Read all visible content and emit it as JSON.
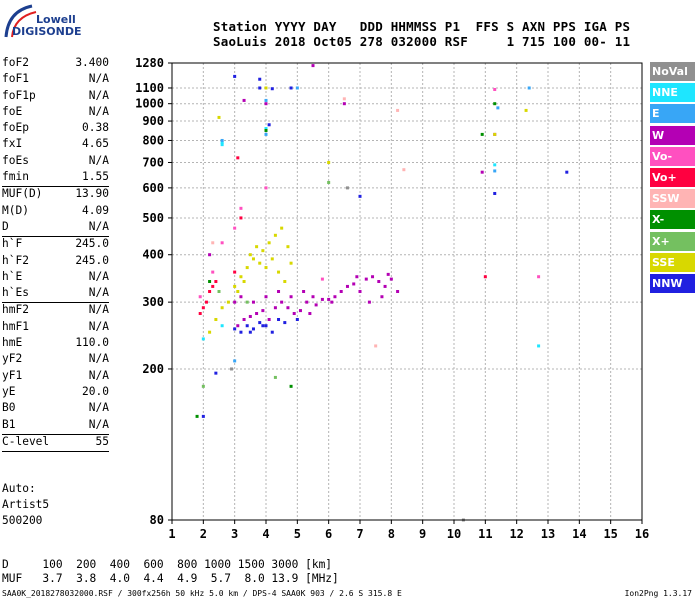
{
  "logo": {
    "top": "Lowell",
    "bottom": "DIGISONDE"
  },
  "header": {
    "line1": "Station YYYY DAY   DDD HHMMSS P1  FFS S AXN PPS IGA PS",
    "line2": "SaoLuis 2018 Oct05 278 032000 RSF     1 715 100 00- 11"
  },
  "params": [
    {
      "name": "foF2",
      "value": "3.400"
    },
    {
      "name": "foF1",
      "value": "N/A"
    },
    {
      "name": "foF1p",
      "value": "N/A"
    },
    {
      "name": "foE",
      "value": "N/A"
    },
    {
      "name": "foEp",
      "value": "0.38"
    },
    {
      "name": "fxI",
      "value": "4.65"
    },
    {
      "name": "foEs",
      "value": "N/A"
    },
    {
      "name": "fmin",
      "value": "1.55",
      "sep": true
    },
    {
      "name": "MUF(D)",
      "value": "13.90"
    },
    {
      "name": "M(D)",
      "value": "4.09"
    },
    {
      "name": "D",
      "value": "N/A",
      "sep": true
    },
    {
      "name": "h`F",
      "value": "245.0"
    },
    {
      "name": "h`F2",
      "value": "245.0"
    },
    {
      "name": "h`E",
      "value": "N/A"
    },
    {
      "name": "h`Es",
      "value": "N/A",
      "sep": true
    },
    {
      "name": "hmF2",
      "value": "N/A"
    },
    {
      "name": "hmF1",
      "value": "N/A"
    },
    {
      "name": "hmE",
      "value": "110.0"
    },
    {
      "name": "yF2",
      "value": "N/A"
    },
    {
      "name": "yF1",
      "value": "N/A"
    },
    {
      "name": "yE",
      "value": "20.0"
    },
    {
      "name": "B0",
      "value": "N/A"
    },
    {
      "name": "B1",
      "value": "N/A",
      "sep": true
    },
    {
      "name": "C-level",
      "value": "55",
      "sep": true
    }
  ],
  "notes": [
    "Auto:",
    "Artist5",
    "500200"
  ],
  "legend": [
    {
      "label": "NoVal",
      "color": "#909090"
    },
    {
      "label": "NNE",
      "color": "#1ee6ff"
    },
    {
      "label": "E",
      "color": "#38a6f6"
    },
    {
      "label": "W",
      "color": "#b400b4"
    },
    {
      "label": "Vo-",
      "color": "#ff50c0"
    },
    {
      "label": "Vo+",
      "color": "#ff0040"
    },
    {
      "label": "SSW",
      "color": "#ffb4b4"
    },
    {
      "label": "X-",
      "color": "#009000"
    },
    {
      "label": "X+",
      "color": "#74c060"
    },
    {
      "label": "SSE",
      "color": "#d8d800"
    },
    {
      "label": "NNW",
      "color": "#2020e0"
    }
  ],
  "table": {
    "line1": "D     100  200  400  600  800 1000 1500 3000 [km]",
    "line2": "MUF   3.7  3.8  4.0  4.4  4.9  5.7  8.0 13.9 [MHz]"
  },
  "footer": "SAA0K_2018278032000.RSF / 300fx256h 50 kHz 5.0 km / DPS-4 SAA0K 903 / 2.6 S 315.8 E",
  "version": "Ion2Png 1.3.17",
  "chart_data": {
    "type": "scatter",
    "title": "",
    "xlabel": "",
    "ylabel": "",
    "x_scale": "linear",
    "y_scale": "log",
    "xlim": [
      1,
      16
    ],
    "ylim": [
      80,
      1280
    ],
    "x_ticks": [
      "1",
      "2",
      "3",
      "4",
      "5",
      "6",
      "7",
      "8",
      "9",
      "10",
      "11",
      "12",
      "13",
      "14",
      "15",
      "16"
    ],
    "y_ticks": [
      "80",
      "200",
      "300",
      "400",
      "500",
      "600",
      "700",
      "800",
      "900",
      "1000",
      "1100",
      "1280"
    ],
    "grid": true,
    "series": [
      {
        "name": "W",
        "color": "#b400b4",
        "points": [
          [
            3.1,
            260
          ],
          [
            3.3,
            270
          ],
          [
            3.5,
            275
          ],
          [
            3.7,
            280
          ],
          [
            3.9,
            285
          ],
          [
            4.1,
            270
          ],
          [
            4.3,
            290
          ],
          [
            4.5,
            300
          ],
          [
            4.7,
            290
          ],
          [
            4.9,
            280
          ],
          [
            5.1,
            285
          ],
          [
            5.3,
            300
          ],
          [
            5.5,
            310
          ],
          [
            5.6,
            295
          ],
          [
            5.8,
            305
          ],
          [
            6.0,
            305
          ],
          [
            6.1,
            300
          ],
          [
            6.4,
            320
          ],
          [
            6.6,
            330
          ],
          [
            6.8,
            335
          ],
          [
            7.0,
            320
          ],
          [
            7.2,
            345
          ],
          [
            7.4,
            350
          ],
          [
            7.6,
            340
          ],
          [
            7.8,
            330
          ],
          [
            7.9,
            355
          ],
          [
            8.0,
            345
          ],
          [
            8.2,
            320
          ],
          [
            6.5,
            1000
          ],
          [
            5.5,
            1260
          ],
          [
            3.0,
            300
          ],
          [
            3.2,
            310
          ],
          [
            3.6,
            300
          ],
          [
            4.0,
            310
          ],
          [
            4.4,
            320
          ],
          [
            4.8,
            310
          ],
          [
            5.2,
            320
          ],
          [
            5.4,
            280
          ],
          [
            6.2,
            310
          ],
          [
            6.9,
            350
          ],
          [
            7.3,
            300
          ],
          [
            7.7,
            310
          ],
          [
            3.3,
            1020
          ],
          [
            2.2,
            400
          ],
          [
            4.0,
            1000
          ],
          [
            11.3,
            830
          ],
          [
            10.9,
            660
          ]
        ]
      },
      {
        "name": "SSE",
        "color": "#d8d800",
        "points": [
          [
            3.0,
            330
          ],
          [
            3.2,
            350
          ],
          [
            3.4,
            370
          ],
          [
            3.6,
            390
          ],
          [
            3.8,
            380
          ],
          [
            4.0,
            370
          ],
          [
            4.2,
            390
          ],
          [
            4.4,
            360
          ],
          [
            4.6,
            340
          ],
          [
            4.8,
            380
          ],
          [
            3.5,
            400
          ],
          [
            3.7,
            420
          ],
          [
            3.9,
            410
          ],
          [
            4.1,
            430
          ],
          [
            4.3,
            450
          ],
          [
            4.5,
            470
          ],
          [
            2.8,
            300
          ],
          [
            3.1,
            320
          ],
          [
            3.3,
            340
          ],
          [
            4.7,
            420
          ],
          [
            2.2,
            250
          ],
          [
            2.4,
            270
          ],
          [
            2.6,
            290
          ],
          [
            4.0,
            1100
          ],
          [
            2.5,
            920
          ],
          [
            11.3,
            830
          ],
          [
            12.3,
            960
          ],
          [
            6.0,
            700
          ]
        ]
      },
      {
        "name": "NNW",
        "color": "#2020e0",
        "points": [
          [
            3.0,
            255
          ],
          [
            3.2,
            250
          ],
          [
            3.4,
            260
          ],
          [
            3.6,
            255
          ],
          [
            3.8,
            265
          ],
          [
            4.0,
            260
          ],
          [
            4.2,
            250
          ],
          [
            4.4,
            270
          ],
          [
            4.6,
            265
          ],
          [
            5.0,
            270
          ],
          [
            3.0,
            1180
          ],
          [
            3.8,
            1100
          ],
          [
            3.8,
            1160
          ],
          [
            4.2,
            1095
          ],
          [
            4.8,
            1100
          ],
          [
            7.0,
            570
          ],
          [
            11.3,
            580
          ],
          [
            13.6,
            660
          ],
          [
            2.4,
            195
          ],
          [
            2.0,
            150
          ],
          [
            4.1,
            880
          ],
          [
            3.9,
            260
          ],
          [
            3.5,
            250
          ]
        ]
      },
      {
        "name": "Vo+",
        "color": "#ff0040",
        "points": [
          [
            2.0,
            290
          ],
          [
            2.1,
            300
          ],
          [
            2.2,
            320
          ],
          [
            1.9,
            280
          ],
          [
            2.3,
            330
          ],
          [
            3.0,
            360
          ],
          [
            3.1,
            720
          ],
          [
            3.2,
            500
          ],
          [
            11.0,
            350
          ],
          [
            2.4,
            340
          ]
        ]
      },
      {
        "name": "Vo-",
        "color": "#ff50c0",
        "points": [
          [
            1.9,
            310
          ],
          [
            2.3,
            360
          ],
          [
            2.6,
            430
          ],
          [
            3.0,
            470
          ],
          [
            3.2,
            530
          ],
          [
            4.0,
            600
          ],
          [
            11.3,
            1090
          ],
          [
            5.8,
            345
          ],
          [
            12.7,
            350
          ]
        ]
      },
      {
        "name": "NNE",
        "color": "#1ee6ff",
        "points": [
          [
            2.6,
            780
          ],
          [
            2.6,
            790
          ],
          [
            4.0,
            860
          ],
          [
            11.3,
            690
          ],
          [
            12.7,
            230
          ],
          [
            2.0,
            240
          ],
          [
            2.6,
            260
          ]
        ]
      },
      {
        "name": "E",
        "color": "#38a6f6",
        "points": [
          [
            4.0,
            830
          ],
          [
            11.4,
            975
          ],
          [
            12.4,
            1100
          ],
          [
            2.6,
            800
          ],
          [
            3.0,
            210
          ],
          [
            5.0,
            1100
          ],
          [
            11.3,
            665
          ],
          [
            4.0,
            1020
          ]
        ]
      },
      {
        "name": "X-",
        "color": "#009000",
        "points": [
          [
            11.3,
            1000
          ],
          [
            10.9,
            830
          ],
          [
            4.8,
            180
          ],
          [
            4.0,
            850
          ],
          [
            1.8,
            150
          ],
          [
            2.2,
            340
          ]
        ]
      },
      {
        "name": "X+",
        "color": "#74c060",
        "points": [
          [
            4.3,
            190
          ],
          [
            6.0,
            620
          ],
          [
            2.0,
            180
          ],
          [
            2.5,
            320
          ],
          [
            3.4,
            300
          ]
        ]
      },
      {
        "name": "SSW",
        "color": "#ffb4b4",
        "points": [
          [
            6.5,
            1030
          ],
          [
            8.2,
            960
          ],
          [
            8.4,
            670
          ],
          [
            7.5,
            230
          ],
          [
            2.3,
            430
          ]
        ]
      },
      {
        "name": "NoVal",
        "color": "#909090",
        "points": [
          [
            10.3,
            80
          ],
          [
            2.9,
            200
          ],
          [
            6.6,
            600
          ]
        ]
      }
    ]
  }
}
